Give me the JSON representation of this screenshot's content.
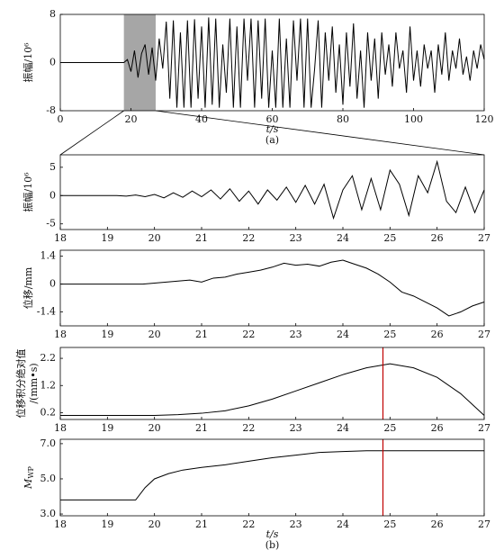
{
  "chart_data": [
    {
      "type": "line",
      "ylabel": "振幅/10⁶",
      "xlabel": "t/s",
      "caption": "(a)",
      "color": "#000000",
      "x": [
        0,
        18,
        19,
        20,
        21,
        22,
        23,
        24,
        25,
        26,
        27,
        28,
        29,
        30,
        31,
        32,
        33,
        34,
        35,
        36,
        37,
        38,
        39,
        40,
        41,
        42,
        43,
        44,
        45,
        46,
        47,
        48,
        49,
        50,
        51,
        52,
        53,
        54,
        55,
        56,
        57,
        58,
        59,
        60,
        61,
        62,
        63,
        64,
        65,
        66,
        67,
        68,
        69,
        70,
        71,
        72,
        73,
        74,
        75,
        76,
        77,
        78,
        79,
        80,
        81,
        82,
        83,
        84,
        85,
        86,
        87,
        88,
        89,
        90,
        91,
        92,
        93,
        94,
        95,
        96,
        97,
        98,
        99,
        100,
        101,
        102,
        103,
        104,
        105,
        106,
        107,
        108,
        109,
        110,
        111,
        112,
        113,
        114,
        115,
        116,
        117,
        118,
        119,
        120
      ],
      "values": [
        0,
        0,
        0.5,
        -1.5,
        2,
        -2.5,
        1.5,
        3,
        -2,
        2.5,
        -3,
        4,
        -1,
        6.8,
        -6,
        7,
        -7.5,
        5,
        -7.5,
        7,
        -7.5,
        7.2,
        -6,
        6,
        -7.5,
        7.5,
        -7,
        7.3,
        -7.5,
        3,
        -5,
        7.3,
        -7.5,
        6,
        -7.5,
        7.3,
        -3,
        7.3,
        -7.5,
        7,
        -6,
        7.3,
        -7.5,
        2,
        -7.5,
        7.3,
        -7.5,
        4,
        -7.5,
        7,
        -3,
        7.3,
        -7.5,
        7.3,
        -7.5,
        -1,
        7,
        -7.5,
        5,
        -3,
        6,
        -5,
        3,
        -7,
        5,
        -4,
        6.5,
        -6,
        2,
        -7.5,
        5,
        -3,
        4,
        -6,
        5,
        -2,
        3,
        -4,
        5,
        -1,
        2,
        -5,
        6,
        -3,
        2,
        -4,
        3,
        -1,
        2,
        -5,
        3,
        -2,
        5,
        -3,
        2,
        -1,
        4,
        -2,
        1,
        -3,
        2,
        -1,
        3,
        0.5
      ],
      "xlim": [
        0,
        120
      ],
      "xticks": [
        0,
        20,
        40,
        60,
        80,
        100,
        120
      ],
      "ylim": [
        -8,
        8
      ],
      "yticks": [
        8,
        0,
        -8
      ],
      "highlight": [
        18,
        27
      ],
      "highlight_color": "#a6a6a6"
    },
    {
      "type": "line",
      "ylabel": "振幅/10⁶",
      "color": "#000000",
      "x": [
        18,
        18.2,
        18.4,
        18.6,
        18.8,
        19,
        19.2,
        19.4,
        19.6,
        19.8,
        20,
        20.2,
        20.4,
        20.6,
        20.8,
        21,
        21.2,
        21.4,
        21.6,
        21.8,
        22,
        22.2,
        22.4,
        22.6,
        22.8,
        23,
        23.2,
        23.4,
        23.6,
        23.8,
        24,
        24.2,
        24.4,
        24.6,
        24.8,
        25,
        25.2,
        25.4,
        25.6,
        25.8,
        26,
        26.2,
        26.4,
        26.6,
        26.8,
        27
      ],
      "values": [
        0,
        0,
        0,
        0,
        0,
        0,
        0,
        -0.1,
        0.1,
        -0.2,
        0.2,
        -0.4,
        0.5,
        -0.3,
        0.8,
        -0.2,
        1.0,
        -0.6,
        1.2,
        -1.0,
        0.8,
        -1.5,
        1.0,
        -0.8,
        1.5,
        -1.2,
        1.8,
        -1.5,
        2.0,
        -4.0,
        1.0,
        3.5,
        -2.5,
        3.0,
        -2.5,
        4.5,
        2.0,
        -3.5,
        3.5,
        0.5,
        6.0,
        -1.0,
        -3.0,
        1.5,
        -3.0,
        1.0
      ],
      "xlim": [
        18,
        27
      ],
      "xticks": [
        18,
        19,
        20,
        21,
        22,
        23,
        24,
        25,
        26,
        27
      ],
      "ylim": [
        -6,
        7.2
      ],
      "yticks": [
        5,
        0,
        -5
      ]
    },
    {
      "type": "line",
      "ylabel": "位移/mm",
      "color": "#000000",
      "x": [
        18,
        18.25,
        18.5,
        18.75,
        19,
        19.25,
        19.5,
        19.75,
        20,
        20.25,
        20.5,
        20.75,
        21,
        21.25,
        21.5,
        21.75,
        22,
        22.25,
        22.5,
        22.75,
        23,
        23.25,
        23.5,
        23.75,
        24,
        24.25,
        24.5,
        24.75,
        25,
        25.25,
        25.5,
        25.75,
        26,
        26.25,
        26.5,
        26.75,
        27
      ],
      "values": [
        0,
        0,
        0,
        0,
        0,
        0,
        0,
        0,
        0.05,
        0.1,
        0.15,
        0.2,
        0.1,
        0.3,
        0.35,
        0.5,
        0.6,
        0.7,
        0.85,
        1.05,
        0.95,
        1.0,
        0.9,
        1.1,
        1.2,
        1.0,
        0.8,
        0.5,
        0.1,
        -0.4,
        -0.6,
        -0.9,
        -1.2,
        -1.6,
        -1.4,
        -1.1,
        -0.9
      ],
      "xlim": [
        18,
        27
      ],
      "xticks": [
        18,
        19,
        20,
        21,
        22,
        23,
        24,
        25,
        26,
        27
      ],
      "ylim": [
        -2.1,
        1.7
      ],
      "yticks": [
        1.4,
        0,
        -1.4
      ]
    },
    {
      "type": "line",
      "ylabel": "位移积分绝对值",
      "ylabel2": "/(mm•s)",
      "color": "#000000",
      "x": [
        18,
        18.5,
        19,
        19.5,
        20,
        20.5,
        21,
        21.5,
        22,
        22.5,
        23,
        23.5,
        24,
        24.5,
        25,
        25.5,
        26,
        26.5,
        27
      ],
      "values": [
        0.1,
        0.1,
        0.1,
        0.1,
        0.1,
        0.13,
        0.18,
        0.27,
        0.45,
        0.7,
        1.0,
        1.3,
        1.6,
        1.85,
        2.0,
        1.85,
        1.5,
        0.9,
        0.1
      ],
      "xlim": [
        18,
        27
      ],
      "xticks": [
        18,
        19,
        20,
        21,
        22,
        23,
        24,
        25,
        26,
        27
      ],
      "ylim": [
        -0.05,
        2.6
      ],
      "yticks": [
        2.2,
        1.2,
        0.2
      ],
      "vline": 24.85,
      "vline_color": "#c00000"
    },
    {
      "type": "line",
      "ylabel": "M",
      "ylabel_sub": "WP",
      "xlabel": "t/s",
      "caption": "(b)",
      "color": "#000000",
      "x": [
        18,
        19,
        19.6,
        19.8,
        20,
        20.3,
        20.6,
        21,
        21.5,
        22,
        22.5,
        23,
        23.5,
        24,
        24.5,
        25,
        26,
        27
      ],
      "values": [
        3.8,
        3.8,
        3.8,
        4.5,
        5.0,
        5.3,
        5.5,
        5.65,
        5.8,
        6.0,
        6.2,
        6.35,
        6.5,
        6.55,
        6.6,
        6.6,
        6.6,
        6.6
      ],
      "xlim": [
        18,
        27
      ],
      "xticks": [
        18,
        19,
        20,
        21,
        22,
        23,
        24,
        25,
        26,
        27
      ],
      "ylim": [
        2.9,
        7.25
      ],
      "yticks": [
        {
          "value": 7,
          "label": "7.0"
        },
        {
          "value": 5,
          "label": "5.0"
        },
        {
          "value": 3,
          "label": "3.0"
        }
      ],
      "vline": 24.85,
      "vline_color": "#c00000"
    }
  ]
}
